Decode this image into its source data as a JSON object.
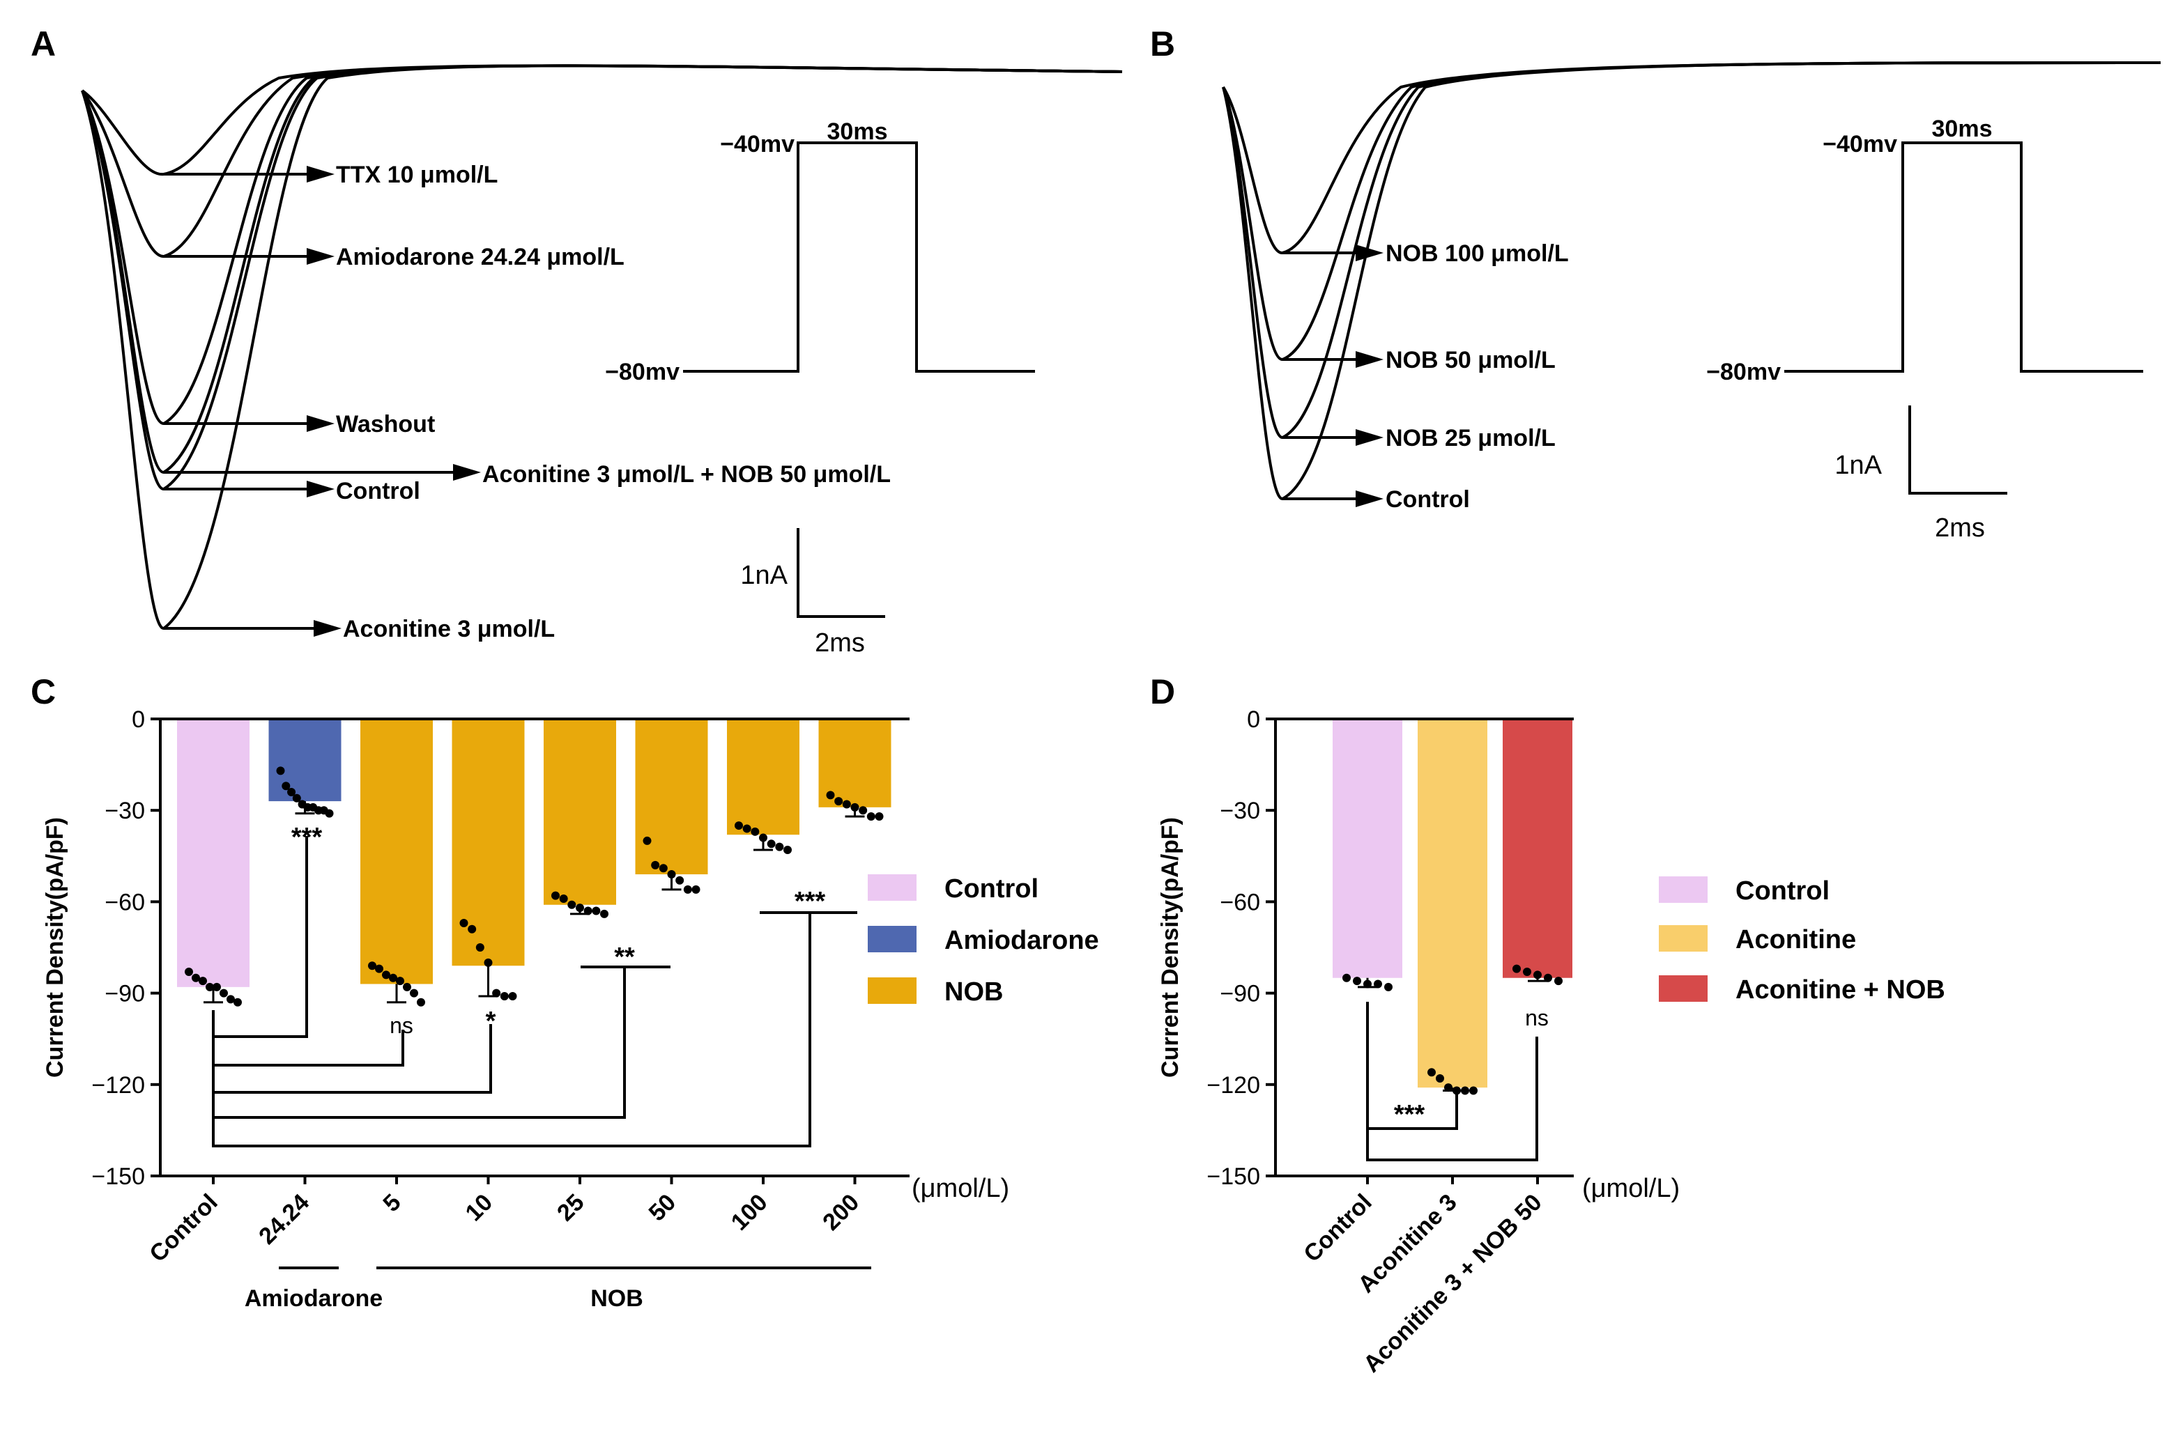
{
  "panels": {
    "a": {
      "letter": "A",
      "trace_labels": [
        "TTX 10 μmol/L",
        "Amiodarone 24.24 μmol/L",
        "Washout",
        "Control",
        "Aconitine 3 μmol/L + NOB 50 μmol/L",
        "Aconitine 3 μmol/L"
      ],
      "protocol": {
        "hold": "−80mv",
        "step": "−40mv",
        "duration": "30ms"
      },
      "scale": {
        "current": "1nA",
        "time": "2ms"
      }
    },
    "b": {
      "letter": "B",
      "trace_labels": [
        "NOB 100 μmol/L",
        "NOB 50 μmol/L",
        "NOB 25 μmol/L",
        "Control"
      ],
      "protocol": {
        "hold": "−80mv",
        "step": "−40mv",
        "duration": "30ms"
      },
      "scale": {
        "current": "1nA",
        "time": "2ms"
      }
    },
    "c": {
      "letter": "C"
    },
    "d": {
      "letter": "D"
    }
  },
  "chart_data": [
    {
      "panel": "C",
      "type": "bar",
      "ylabel": "Current Density(pA/pF)",
      "unit_label": "(μmol/L)",
      "ylim": [
        -150,
        0
      ],
      "yticks": [
        0,
        -30,
        -60,
        -90,
        -120,
        -150
      ],
      "categories": [
        "Control",
        "24.24",
        "5",
        "10",
        "25",
        "50",
        "100",
        "200"
      ],
      "groups": [
        "Control",
        "Amiodarone",
        "NOB",
        "NOB",
        "NOB",
        "NOB",
        "NOB",
        "NOB"
      ],
      "group_labels": [
        "Amiodarone",
        "NOB"
      ],
      "values": [
        -88,
        -27,
        -87,
        -81,
        -61,
        -51,
        -38,
        -29
      ],
      "colors": {
        "Control": "#ecc8f2",
        "Amiodarone": "#4f68b0",
        "NOB": "#e8a90c"
      },
      "legend": [
        "Control",
        "Amiodarone",
        "NOB"
      ],
      "points": [
        [
          -83,
          -85,
          -86,
          -88,
          -88,
          -90,
          -92,
          -93
        ],
        [
          -17,
          -22,
          -24,
          -26,
          -28,
          -29,
          -29,
          -30,
          -30,
          -31
        ],
        [
          -81,
          -82,
          -84,
          -85,
          -86,
          -88,
          -90,
          -93
        ],
        [
          -67,
          -69,
          -75,
          -80,
          -90,
          -91,
          -91
        ],
        [
          -58,
          -59,
          -61,
          -62,
          -63,
          -63,
          -64
        ],
        [
          -40,
          -48,
          -49,
          -51,
          -53,
          -56,
          -56
        ],
        [
          -35,
          -36,
          -37,
          -39,
          -41,
          -42,
          -43
        ],
        [
          -25,
          -27,
          -28,
          -29,
          -30,
          -32,
          -32
        ]
      ],
      "significance": [
        {
          "vs": "24.24",
          "label": "***"
        },
        {
          "vs": "5",
          "label": "ns"
        },
        {
          "vs": "10",
          "label": "*"
        },
        {
          "vs": "25",
          "label": "**"
        },
        {
          "vs": "200",
          "label": "***"
        }
      ]
    },
    {
      "panel": "D",
      "type": "bar",
      "ylabel": "Current Density(pA/pF)",
      "unit_label": "(μmol/L)",
      "ylim": [
        -150,
        0
      ],
      "yticks": [
        0,
        -30,
        -60,
        -90,
        -120,
        -150
      ],
      "categories": [
        "Control",
        "Aconitine 3",
        "Aconitine 3 + NOB 50"
      ],
      "values": [
        -85,
        -121,
        -85
      ],
      "colors": [
        "#ecc8f2",
        "#f9ce6b",
        "#d64a4a"
      ],
      "legend": [
        "Control",
        "Aconitine",
        "Aconitine + NOB"
      ],
      "points": [
        [
          -85,
          -86,
          -87,
          -87,
          -88
        ],
        [
          -116,
          -118,
          -121,
          -122,
          -122,
          -122
        ],
        [
          -82,
          -83,
          -84,
          -85,
          -86
        ]
      ],
      "significance": [
        {
          "vs": "Aconitine 3",
          "label": "***"
        },
        {
          "vs": "Aconitine 3 + NOB 50",
          "label": "ns"
        }
      ]
    }
  ]
}
